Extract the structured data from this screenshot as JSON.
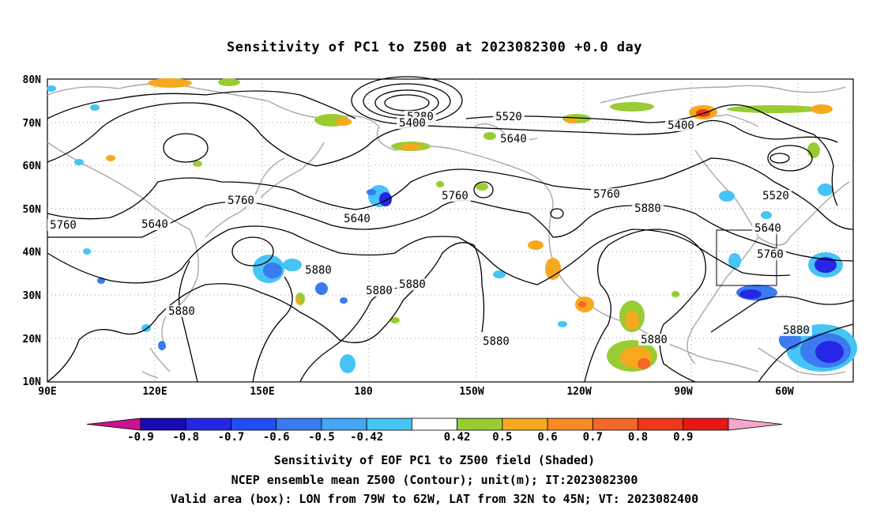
{
  "title": "Sensitivity of PC1 to Z500 at 2023082300 +0.0 day",
  "map": {
    "lat_labels": [
      "80N",
      "70N",
      "60N",
      "50N",
      "40N",
      "30N",
      "20N",
      "10N"
    ],
    "lon_labels": [
      "90E",
      "120E",
      "150E",
      "180",
      "150W",
      "120W",
      "90W",
      "60W"
    ],
    "contour_labels": [
      {
        "text": "5280"
      },
      {
        "text": "5400"
      },
      {
        "text": "5400"
      },
      {
        "text": "5520"
      },
      {
        "text": "5520"
      },
      {
        "text": "5640"
      },
      {
        "text": "5640"
      },
      {
        "text": "5640"
      },
      {
        "text": "5640"
      },
      {
        "text": "5760"
      },
      {
        "text": "5760"
      },
      {
        "text": "5760"
      },
      {
        "text": "5760"
      },
      {
        "text": "5760"
      },
      {
        "text": "5880"
      },
      {
        "text": "5880"
      },
      {
        "text": "5880"
      },
      {
        "text": "5880"
      },
      {
        "text": "5880"
      },
      {
        "text": "5880"
      },
      {
        "text": "5880"
      },
      {
        "text": "5880"
      }
    ],
    "box": {
      "lon_from": "79W",
      "lon_to": "62W",
      "lat_from": "32N",
      "lat_to": "45N"
    },
    "colors": {
      "neg_deep": "#1f1fcf",
      "neg_mid": "#3a7bef",
      "neg_light": "#45c4f5",
      "pos_light": "#99cc33",
      "pos_mid": "#f6a91f",
      "pos_high": "#f3672a",
      "pos_max": "#e02020",
      "land": "#a8a8a8"
    }
  },
  "colorbar": {
    "labels": [
      "-0.9",
      "-0.8",
      "-0.7",
      "-0.6",
      "-0.5",
      "-0.42",
      "0.42",
      "0.5",
      "0.6",
      "0.7",
      "0.8",
      "0.9"
    ],
    "colors": [
      "#c8138f",
      "#1a0ab4",
      "#2626e6",
      "#1e4ef4",
      "#3a7bef",
      "#43a6f7",
      "#45c4f5",
      "#ffffff",
      "#99cc33",
      "#f6a91f",
      "#f88a25",
      "#f3672a",
      "#f0381c",
      "#e81717",
      "#f6a7c9"
    ]
  },
  "captions": [
    "Sensitivity of EOF PC1 to Z500 field (Shaded)",
    "NCEP ensemble mean Z500 (Contour); unit(m); IT:2023082300",
    "Valid area (box): LON from 79W to 62W, LAT from 32N to 45N; VT: 2023082400"
  ]
}
